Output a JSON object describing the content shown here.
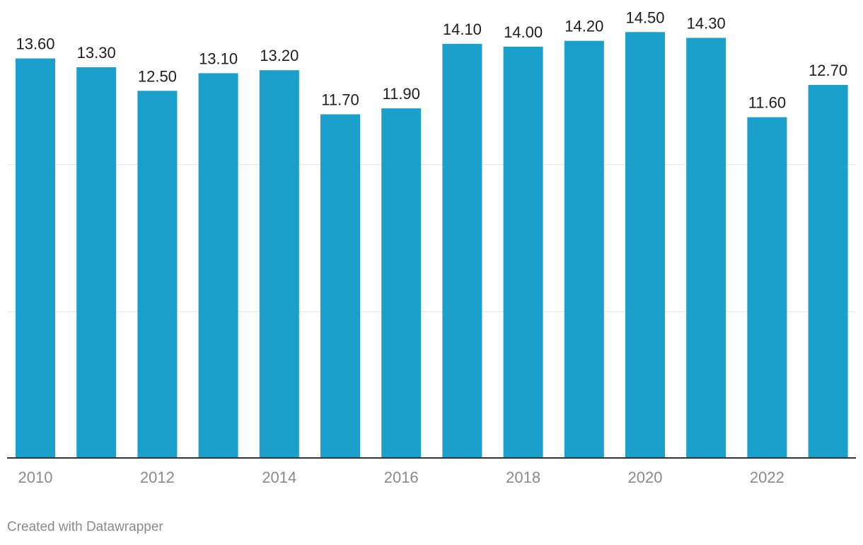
{
  "chart_data": {
    "type": "bar",
    "categories": [
      "2010",
      "2011",
      "2012",
      "2013",
      "2014",
      "2015",
      "2016",
      "2017",
      "2018",
      "2019",
      "2020",
      "2021",
      "2022",
      "2023"
    ],
    "values": [
      13.6,
      13.3,
      12.5,
      13.1,
      13.2,
      11.7,
      11.9,
      14.1,
      14.0,
      14.2,
      14.5,
      14.3,
      11.6,
      12.7
    ],
    "value_labels": [
      "13.60",
      "13.30",
      "12.50",
      "13.10",
      "13.20",
      "11.70",
      "11.90",
      "14.10",
      "14.00",
      "14.20",
      "14.50",
      "14.30",
      "11.60",
      "12.70"
    ],
    "x_tick_labels": [
      "2010",
      "2012",
      "2014",
      "2016",
      "2018",
      "2020",
      "2022"
    ],
    "ylim": [
      0,
      15
    ],
    "y_gridlines": [
      5,
      10
    ],
    "grid": true,
    "bar_color": "#1aa0cb"
  },
  "footer": {
    "credit": "Created with Datawrapper"
  }
}
